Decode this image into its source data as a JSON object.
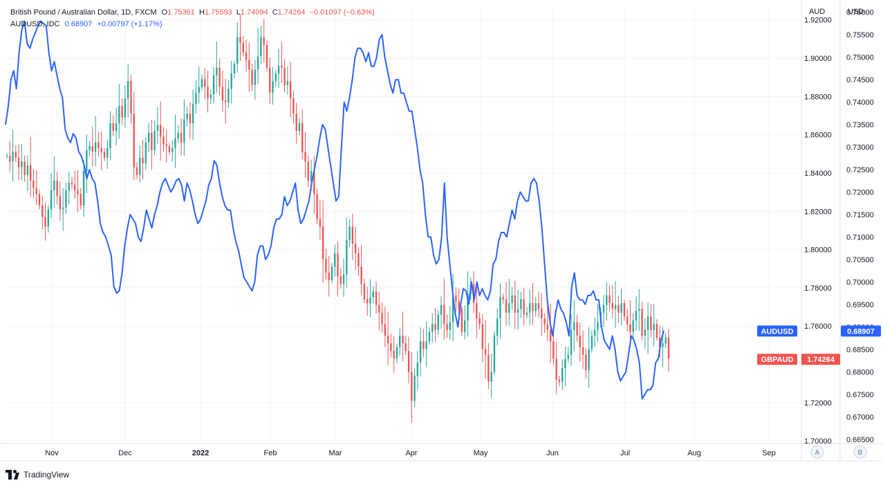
{
  "legend": {
    "symbol": "British Pound / Australian Dollar, 1D, FXCM",
    "open_label": "O",
    "open": "1.75361",
    "high_label": "H",
    "high": "1.75593",
    "low_label": "L",
    "low": "1.74094",
    "close_label": "C",
    "close": "1.74264",
    "change": "−0.01097 (−0.63%)",
    "compare_symbol": "AUDUSD, IDC",
    "compare_value": "0.68907",
    "compare_change": "+0.00797 (+1.17%)"
  },
  "axes": {
    "left_scale_title": "AUD",
    "right_scale_title": "USD",
    "scale_buttons": [
      "A",
      "B"
    ]
  },
  "brand": "TradingView",
  "colors": {
    "up": "#26a69a",
    "down": "#ef5350",
    "compare_line": "#2962ff",
    "grid": "#f0f3fa",
    "text": "#131722"
  },
  "chart_data": {
    "type": "candlestick+line",
    "grid": true,
    "x_tick_labels": [
      "Nov",
      "Dec",
      "2022",
      "Feb",
      "Mar",
      "Apr",
      "May",
      "Jun",
      "Jul",
      "Aug",
      "Sep"
    ],
    "y_left": {
      "ticks": [
        "1.92000",
        "1.90000",
        "1.88000",
        "1.86000",
        "1.84000",
        "1.82000",
        "1.80000",
        "1.78000",
        "1.76000",
        "1.72000",
        "1.70000"
      ],
      "range": [
        1.6997,
        1.9275
      ]
    },
    "y_right": {
      "ticks": [
        "0.76000",
        "0.75500",
        "0.75000",
        "0.74500",
        "0.74000",
        "0.73500",
        "0.73000",
        "0.72500",
        "0.72000",
        "0.71500",
        "0.71000",
        "0.70500",
        "0.70000",
        "0.69500",
        "0.69000",
        "0.68500",
        "0.68000",
        "0.67500",
        "0.67000",
        "0.66500"
      ],
      "range": [
        0.6645,
        0.7615
      ]
    },
    "series": [
      {
        "name": "GBPAUD",
        "axis": "left",
        "type": "candlestick",
        "last_value": "1.74264",
        "start": 1.849,
        "close": [
          1.849,
          1.846,
          1.851,
          1.848,
          1.843,
          1.846,
          1.839,
          1.844,
          1.836,
          1.832,
          1.829,
          1.823,
          1.817,
          1.812,
          1.821,
          1.831,
          1.836,
          1.828,
          1.821,
          1.822,
          1.831,
          1.835,
          1.834,
          1.831,
          1.829,
          1.823,
          1.841,
          1.852,
          1.854,
          1.851,
          1.856,
          1.853,
          1.851,
          1.848,
          1.853,
          1.866,
          1.862,
          1.866,
          1.875,
          1.869,
          1.879,
          1.888,
          1.871,
          1.843,
          1.839,
          1.848,
          1.845,
          1.856,
          1.861,
          1.852,
          1.862,
          1.865,
          1.859,
          1.855,
          1.854,
          1.851,
          1.853,
          1.858,
          1.861,
          1.856,
          1.868,
          1.871,
          1.866,
          1.876,
          1.882,
          1.885,
          1.889,
          1.885,
          1.879,
          1.881,
          1.891,
          1.895,
          1.885,
          1.878,
          1.877,
          1.884,
          1.892,
          1.897,
          1.911,
          1.908,
          1.903,
          1.899,
          1.894,
          1.886,
          1.894,
          1.901,
          1.911,
          1.907,
          1.895,
          1.882,
          1.888,
          1.892,
          1.896,
          1.895,
          1.886,
          1.888,
          1.879,
          1.871,
          1.862,
          1.866,
          1.851,
          1.846,
          1.836,
          1.841,
          1.829,
          1.816,
          1.812,
          1.795,
          1.788,
          1.784,
          1.791,
          1.798,
          1.786,
          1.782,
          1.787,
          1.805,
          1.812,
          1.803,
          1.798,
          1.791,
          1.782,
          1.774,
          1.772,
          1.775,
          1.778,
          1.771,
          1.767,
          1.761,
          1.755,
          1.751,
          1.747,
          1.743,
          1.749,
          1.755,
          1.751,
          1.747,
          1.736,
          1.721,
          1.734,
          1.741,
          1.752,
          1.748,
          1.752,
          1.757,
          1.761,
          1.758,
          1.766,
          1.771,
          1.761,
          1.758,
          1.762,
          1.776,
          1.773,
          1.769,
          1.757,
          1.763,
          1.777,
          1.782,
          1.772,
          1.764,
          1.761,
          1.748,
          1.745,
          1.731,
          1.736,
          1.755,
          1.764,
          1.775,
          1.774,
          1.767,
          1.772,
          1.776,
          1.767,
          1.769,
          1.774,
          1.766,
          1.767,
          1.772,
          1.768,
          1.772,
          1.769,
          1.764,
          1.761,
          1.758,
          1.752,
          1.743,
          1.732,
          1.731,
          1.738,
          1.743,
          1.745,
          1.758,
          1.762,
          1.755,
          1.749,
          1.745,
          1.737,
          1.748,
          1.755,
          1.758,
          1.762,
          1.767,
          1.771,
          1.776,
          1.772,
          1.769,
          1.771,
          1.767,
          1.772,
          1.765,
          1.761,
          1.757,
          1.763,
          1.768,
          1.769,
          1.755,
          1.758,
          1.765,
          1.758,
          1.761,
          1.754,
          1.749,
          1.751,
          1.754,
          1.743
        ]
      },
      {
        "name": "AUDUSD",
        "axis": "right",
        "type": "line",
        "last_value": "0.68907",
        "values": [
          0.735,
          0.739,
          0.745,
          0.747,
          0.743,
          0.751,
          0.756,
          0.758,
          0.753,
          0.752,
          0.754,
          0.7555,
          0.757,
          0.758,
          0.7575,
          0.757,
          0.751,
          0.747,
          0.749,
          0.746,
          0.743,
          0.741,
          0.734,
          0.732,
          0.731,
          0.733,
          0.732,
          0.729,
          0.728,
          0.726,
          0.723,
          0.725,
          0.723,
          0.722,
          0.718,
          0.713,
          0.711,
          0.71,
          0.708,
          0.706,
          0.699,
          0.6975,
          0.698,
          0.702,
          0.708,
          0.712,
          0.715,
          0.714,
          0.713,
          0.71,
          0.709,
          0.712,
          0.716,
          0.714,
          0.712,
          0.715,
          0.717,
          0.72,
          0.722,
          0.723,
          0.7215,
          0.72,
          0.721,
          0.7225,
          0.723,
          0.7215,
          0.718,
          0.722,
          0.7205,
          0.718,
          0.715,
          0.713,
          0.714,
          0.716,
          0.718,
          0.7215,
          0.723,
          0.727,
          0.726,
          0.722,
          0.719,
          0.717,
          0.716,
          0.716,
          0.712,
          0.709,
          0.707,
          0.704,
          0.701,
          0.7,
          0.699,
          0.698,
          0.7,
          0.706,
          0.708,
          0.708,
          0.705,
          0.706,
          0.708,
          0.712,
          0.714,
          0.714,
          0.715,
          0.719,
          0.717,
          0.718,
          0.72,
          0.722,
          0.716,
          0.713,
          0.714,
          0.716,
          0.718,
          0.722,
          0.725,
          0.728,
          0.732,
          0.735,
          0.734,
          0.73,
          0.726,
          0.722,
          0.718,
          0.719,
          0.73,
          0.74,
          0.738,
          0.741,
          0.745,
          0.75,
          0.752,
          0.752,
          0.751,
          0.749,
          0.751,
          0.748,
          0.748,
          0.75,
          0.754,
          0.755,
          0.75,
          0.747,
          0.744,
          0.742,
          0.745,
          0.745,
          0.742,
          0.742,
          0.74,
          0.738,
          0.738,
          0.734,
          0.73,
          0.725,
          0.722,
          0.715,
          0.71,
          0.71,
          0.706,
          0.704,
          0.705,
          0.71,
          0.722,
          0.71,
          0.704,
          0.698,
          0.693,
          0.69,
          0.695,
          0.6985,
          0.698,
          0.695,
          0.7,
          0.696,
          0.7,
          0.697,
          0.6985,
          0.697,
          0.696,
          0.698,
          0.704,
          0.705,
          0.709,
          0.711,
          0.711,
          0.71,
          0.713,
          0.716,
          0.714,
          0.718,
          0.72,
          0.719,
          0.718,
          0.718,
          0.722,
          0.723,
          0.722,
          0.718,
          0.712,
          0.704,
          0.696,
          0.691,
          0.688,
          0.693,
          0.696,
          0.694,
          0.693,
          0.691,
          0.688,
          0.699,
          0.702,
          0.697,
          0.696,
          0.696,
          0.695,
          0.697,
          0.697,
          0.698,
          0.696,
          0.696,
          0.69,
          0.687,
          0.686,
          0.685,
          0.688,
          0.685,
          0.68,
          0.678,
          0.679,
          0.68,
          0.684,
          0.688,
          0.687,
          0.685,
          0.682,
          0.674,
          0.675,
          0.676,
          0.676,
          0.677,
          0.682,
          0.683,
          0.687,
          0.6891
        ]
      }
    ]
  }
}
